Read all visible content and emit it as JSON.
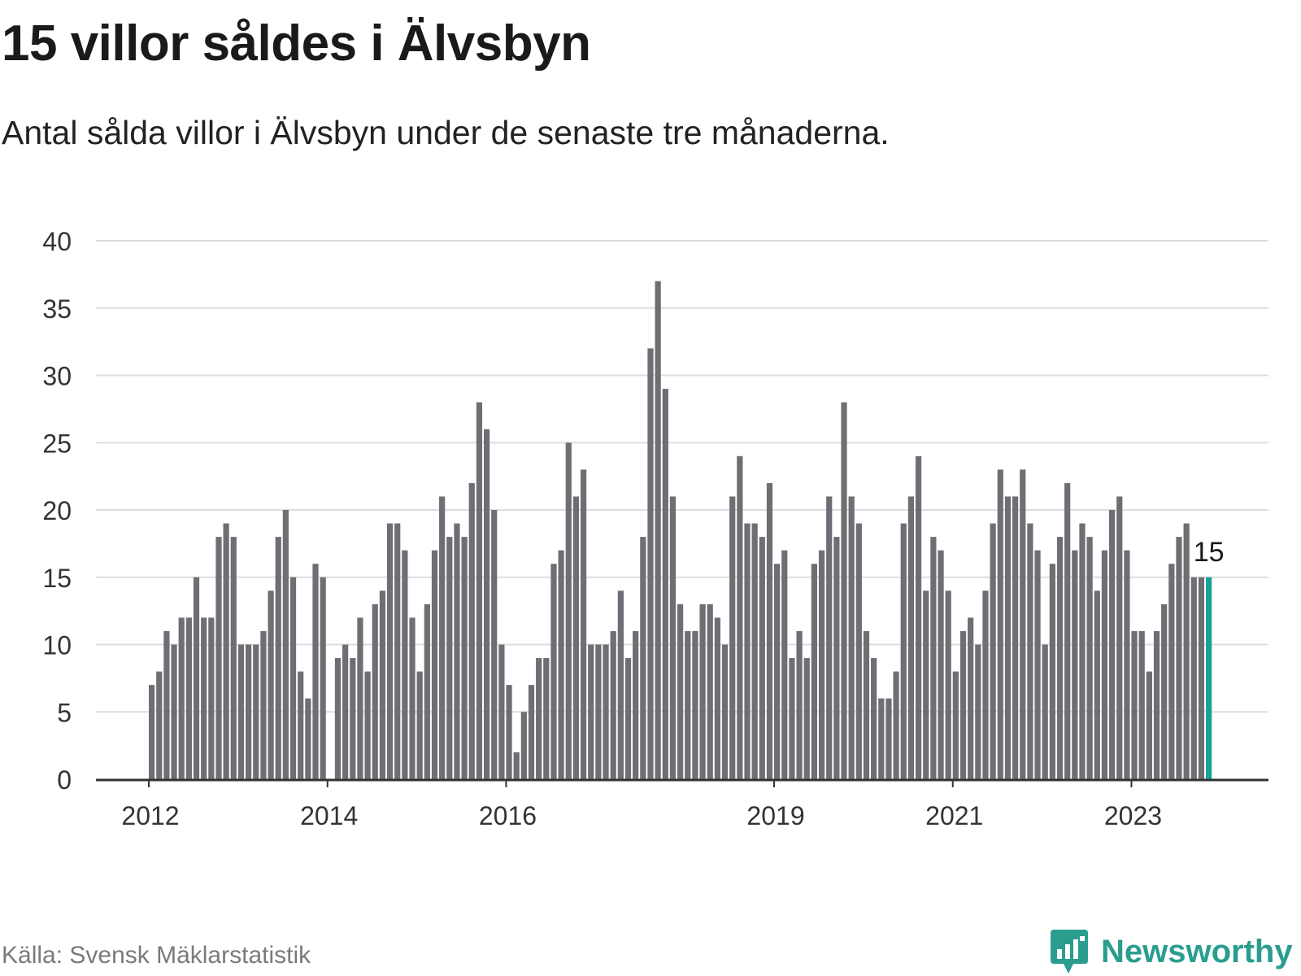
{
  "title": "15 villor såldes i Älvsbyn",
  "subtitle": "Antal sålda villor i Älvsbyn under de senaste tre månaderna.",
  "source": "Källa: Svensk Mäklarstatistik",
  "brand": {
    "name": "Newsworthy",
    "icon": "newsworthy-logo-icon"
  },
  "colors": {
    "bar": "#6f6e74",
    "highlight": "#17a398",
    "grid": "#dddddd",
    "axis": "#333333",
    "brand": "#2a9d8f"
  },
  "chart_data": {
    "type": "bar",
    "xlabel": "",
    "ylabel": "",
    "ylim": [
      0,
      40
    ],
    "yticks": [
      0,
      5,
      10,
      15,
      20,
      25,
      30,
      35,
      40
    ],
    "x_tick_labels": [
      "2012",
      "2014",
      "2016",
      "2019",
      "2021",
      "2023"
    ],
    "grid": true,
    "highlight_label": "15",
    "values": [
      7,
      8,
      11,
      10,
      12,
      12,
      15,
      12,
      12,
      18,
      19,
      18,
      10,
      10,
      10,
      11,
      14,
      18,
      20,
      15,
      8,
      6,
      16,
      15,
      0,
      9,
      10,
      9,
      12,
      8,
      13,
      14,
      19,
      19,
      17,
      12,
      8,
      13,
      17,
      21,
      18,
      19,
      18,
      22,
      28,
      26,
      20,
      10,
      7,
      2,
      5,
      7,
      9,
      9,
      16,
      17,
      25,
      21,
      23,
      10,
      10,
      10,
      11,
      14,
      9,
      11,
      18,
      32,
      37,
      29,
      21,
      13,
      11,
      11,
      13,
      13,
      12,
      10,
      21,
      24,
      19,
      19,
      18,
      22,
      16,
      17,
      9,
      11,
      9,
      16,
      17,
      21,
      18,
      28,
      21,
      19,
      11,
      9,
      6,
      6,
      8,
      19,
      21,
      24,
      14,
      18,
      17,
      14,
      8,
      11,
      12,
      10,
      14,
      19,
      23,
      21,
      21,
      23,
      19,
      17,
      10,
      16,
      18,
      22,
      17,
      19,
      18,
      14,
      17,
      20,
      21,
      17,
      11,
      11,
      8,
      11,
      13,
      16,
      18,
      19,
      15,
      15,
      15
    ]
  }
}
